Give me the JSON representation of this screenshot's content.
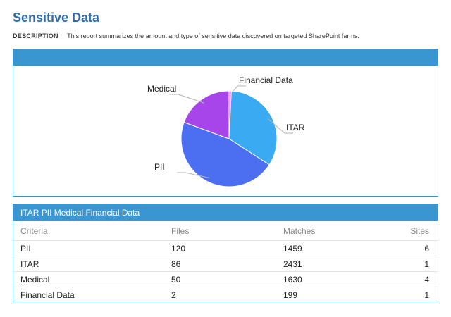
{
  "page": {
    "title": "Sensitive Data",
    "description_label": "DESCRIPTION",
    "description": "This report summarizes the amount and type of sensitive data discovered on targeted SharePoint farms."
  },
  "colors": {
    "accent": "#3a96d0",
    "title": "#2f6db0"
  },
  "chart_data": {
    "type": "pie",
    "title": "",
    "categories": [
      "Financial Data",
      "ITAR",
      "PII",
      "Medical"
    ],
    "values": [
      2,
      86,
      120,
      50
    ],
    "colors": [
      "#e84ad8",
      "#3aabf3",
      "#4b6ff0",
      "#a745ea"
    ],
    "legend": "none"
  },
  "table": {
    "title": "ITAR PII Medical Financial Data",
    "columns": [
      "Criteria",
      "Files",
      "Matches",
      "Sites"
    ],
    "rows": [
      [
        "PII",
        "120",
        "1459",
        "6"
      ],
      [
        "ITAR",
        "86",
        "2431",
        "1"
      ],
      [
        "Medical",
        "50",
        "1630",
        "4"
      ],
      [
        "Financial Data",
        "2",
        "199",
        "1"
      ]
    ]
  }
}
